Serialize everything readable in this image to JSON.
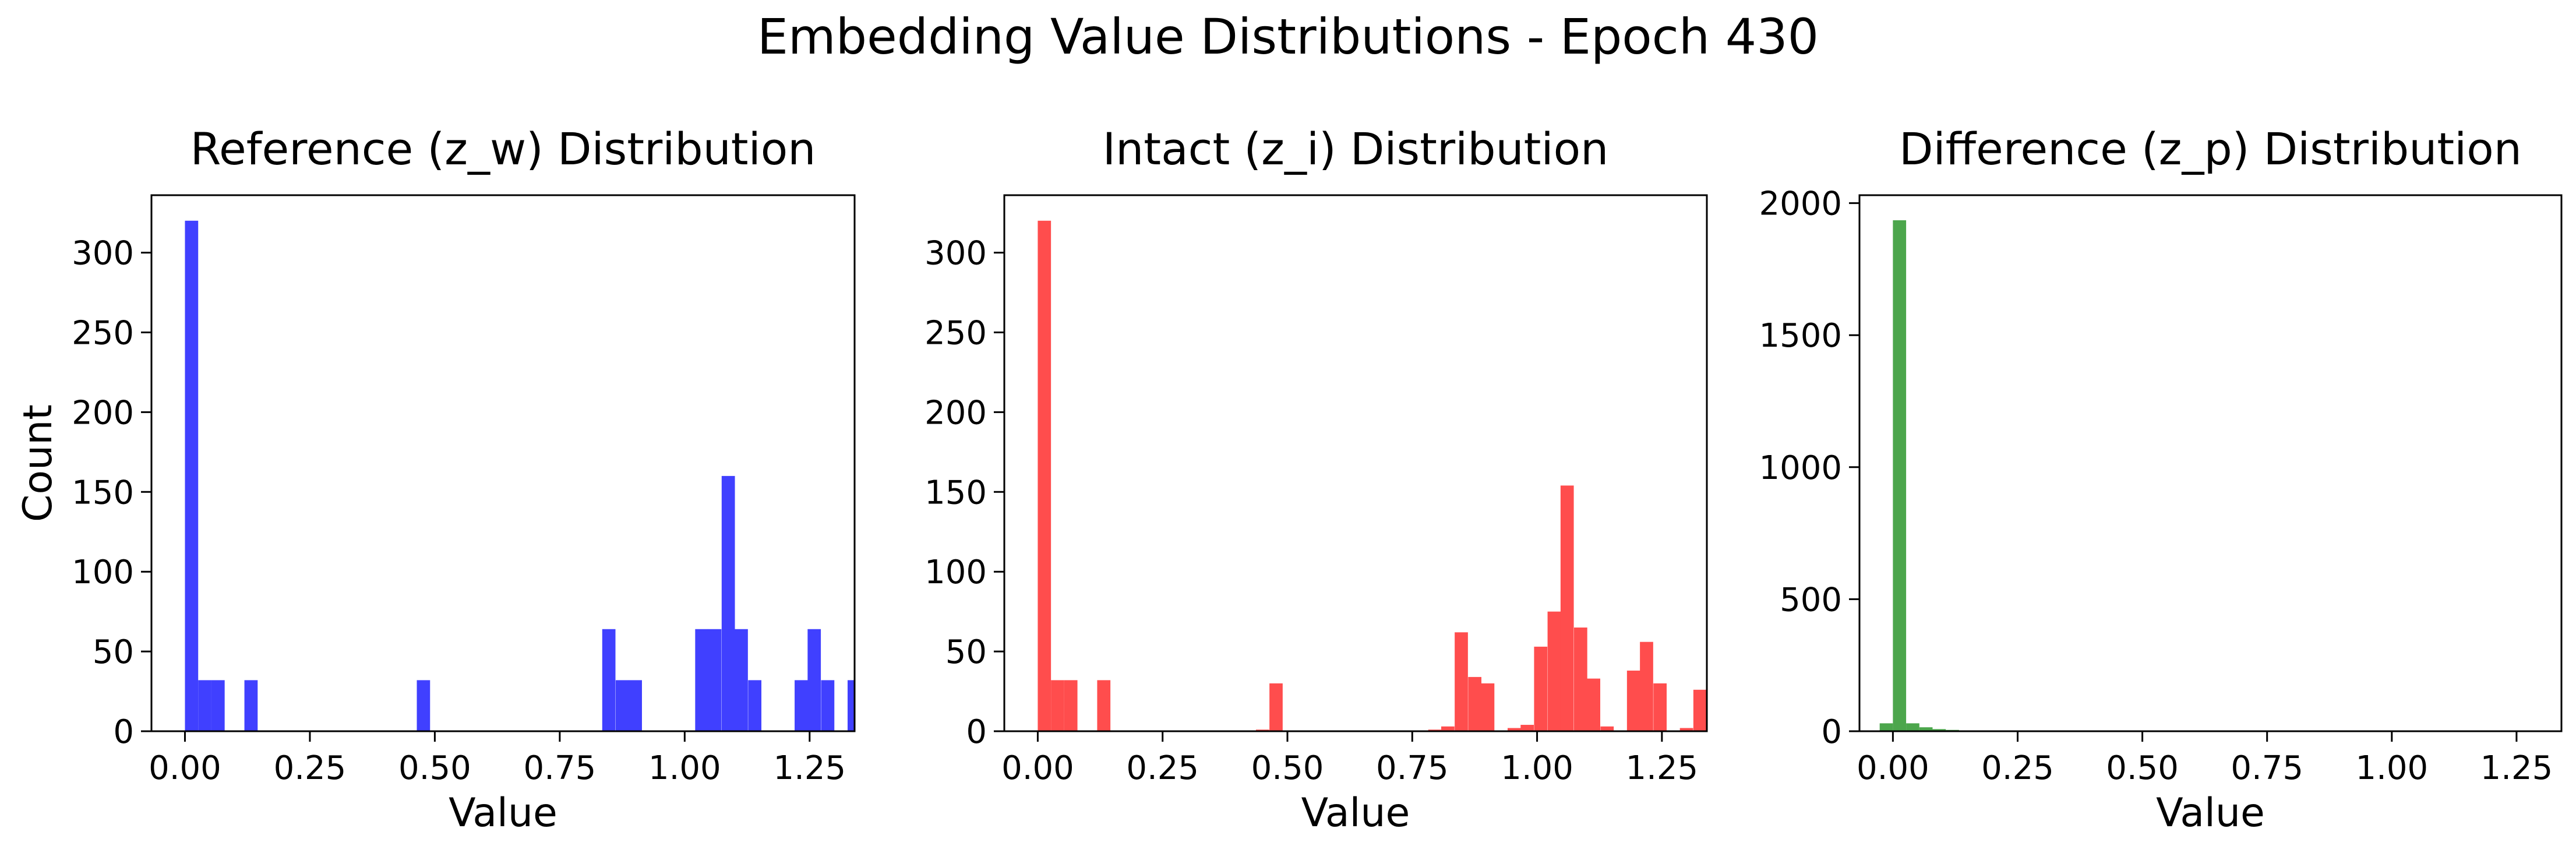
{
  "figure_title": "Embedding Value Distributions - Epoch 430",
  "colors": {
    "reference": "#4040ff",
    "intact": "#ff4d4d",
    "difference": "#4ca64c"
  },
  "chart_data": [
    {
      "type": "bar",
      "title": "Reference (z_w) Distribution",
      "xlabel": "Value",
      "ylabel": "Count",
      "xlim": [
        -0.067,
        1.34
      ],
      "ylim": [
        0,
        336
      ],
      "xticks": [
        0.0,
        0.25,
        0.5,
        0.75,
        1.0,
        1.25
      ],
      "xtick_labels": [
        "0.00",
        "0.25",
        "0.50",
        "0.75",
        "1.00",
        "1.25"
      ],
      "yticks": [
        0,
        50,
        100,
        150,
        200,
        250,
        300
      ],
      "ytick_labels": [
        "0",
        "50",
        "100",
        "150",
        "200",
        "250",
        "300"
      ],
      "color_key": "reference",
      "bin_width": 0.0265,
      "bars": [
        {
          "x": 0.0,
          "value": 320
        },
        {
          "x": 0.0265,
          "value": 32
        },
        {
          "x": 0.053,
          "value": 32
        },
        {
          "x": 0.119,
          "value": 32
        },
        {
          "x": 0.464,
          "value": 32
        },
        {
          "x": 0.835,
          "value": 64
        },
        {
          "x": 0.862,
          "value": 32
        },
        {
          "x": 0.888,
          "value": 32
        },
        {
          "x": 1.021,
          "value": 64
        },
        {
          "x": 1.047,
          "value": 64
        },
        {
          "x": 1.074,
          "value": 160
        },
        {
          "x": 1.1,
          "value": 64
        },
        {
          "x": 1.127,
          "value": 32
        },
        {
          "x": 1.22,
          "value": 32
        },
        {
          "x": 1.246,
          "value": 64
        },
        {
          "x": 1.273,
          "value": 32
        },
        {
          "x": 1.326,
          "value": 32
        }
      ]
    },
    {
      "type": "bar",
      "title": "Intact (z_i) Distribution",
      "xlabel": "Value",
      "ylabel": "",
      "xlim": [
        -0.067,
        1.34
      ],
      "ylim": [
        0,
        336
      ],
      "xticks": [
        0.0,
        0.25,
        0.5,
        0.75,
        1.0,
        1.25
      ],
      "xtick_labels": [
        "0.00",
        "0.25",
        "0.50",
        "0.75",
        "1.00",
        "1.25"
      ],
      "yticks": [
        0,
        50,
        100,
        150,
        200,
        250,
        300
      ],
      "ytick_labels": [
        "0",
        "50",
        "100",
        "150",
        "200",
        "250",
        "300"
      ],
      "color_key": "intact",
      "bin_width": 0.0265,
      "bars": [
        {
          "x": 0.0,
          "value": 320
        },
        {
          "x": 0.0265,
          "value": 32
        },
        {
          "x": 0.053,
          "value": 32
        },
        {
          "x": 0.119,
          "value": 32
        },
        {
          "x": 0.437,
          "value": 1
        },
        {
          "x": 0.464,
          "value": 30
        },
        {
          "x": 0.782,
          "value": 1
        },
        {
          "x": 0.808,
          "value": 3
        },
        {
          "x": 0.835,
          "value": 62
        },
        {
          "x": 0.862,
          "value": 34
        },
        {
          "x": 0.888,
          "value": 30
        },
        {
          "x": 0.941,
          "value": 2
        },
        {
          "x": 0.967,
          "value": 4
        },
        {
          "x": 0.994,
          "value": 53
        },
        {
          "x": 1.021,
          "value": 75
        },
        {
          "x": 1.047,
          "value": 154
        },
        {
          "x": 1.074,
          "value": 65
        },
        {
          "x": 1.1,
          "value": 33
        },
        {
          "x": 1.127,
          "value": 3
        },
        {
          "x": 1.18,
          "value": 38
        },
        {
          "x": 1.206,
          "value": 56
        },
        {
          "x": 1.233,
          "value": 30
        },
        {
          "x": 1.286,
          "value": 2
        },
        {
          "x": 1.313,
          "value": 26
        }
      ]
    },
    {
      "type": "bar",
      "title": "Difference (z_p) Distribution",
      "xlabel": "Value",
      "ylabel": "",
      "xlim": [
        -0.067,
        1.34
      ],
      "ylim": [
        0,
        2030
      ],
      "xticks": [
        0.0,
        0.25,
        0.5,
        0.75,
        1.0,
        1.25
      ],
      "xtick_labels": [
        "0.00",
        "0.25",
        "0.50",
        "0.75",
        "1.00",
        "1.25"
      ],
      "yticks": [
        0,
        500,
        1000,
        1500,
        2000
      ],
      "ytick_labels": [
        "0",
        "500",
        "1000",
        "1500",
        "2000"
      ],
      "color_key": "difference",
      "bin_width": 0.0265,
      "bars": [
        {
          "x": -0.0265,
          "value": 30
        },
        {
          "x": 0.0,
          "value": 1935
        },
        {
          "x": 0.0265,
          "value": 30
        },
        {
          "x": 0.053,
          "value": 15
        },
        {
          "x": 0.0795,
          "value": 8
        },
        {
          "x": 0.106,
          "value": 5
        },
        {
          "x": 0.1325,
          "value": 2
        }
      ]
    }
  ]
}
